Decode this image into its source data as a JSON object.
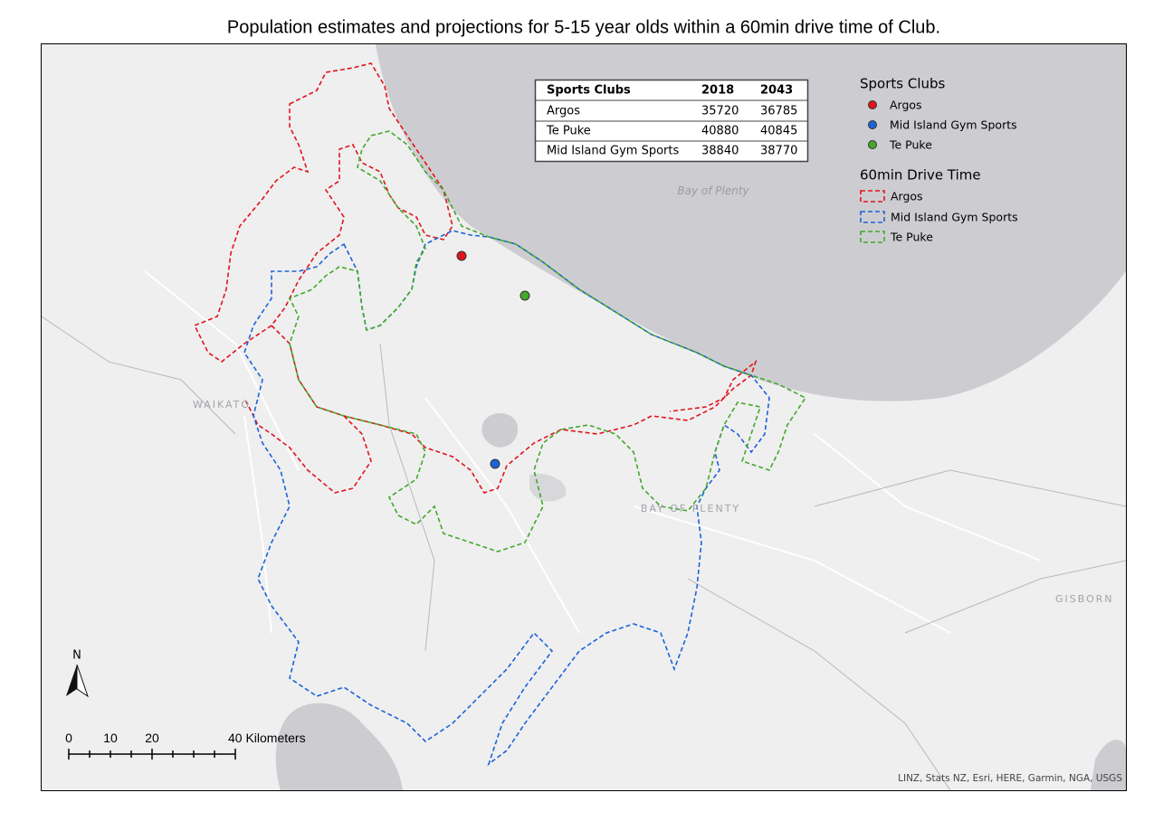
{
  "title": "Population estimates and projections for 5-15 year olds within a 60min drive time of Club.",
  "table": {
    "header": [
      "Sports Clubs",
      "2018",
      "2043"
    ],
    "rows": [
      [
        "Argos",
        35720,
        36785
      ],
      [
        "Te Puke",
        40880,
        40845
      ],
      [
        "Mid Island Gym Sports",
        38840,
        38770
      ]
    ]
  },
  "legend": {
    "clubs_title": "Sports Clubs",
    "clubs": [
      "Argos",
      "Mid Island Gym Sports",
      "Te Puke"
    ],
    "drive_title": "60min Drive Time",
    "drive": [
      "Argos",
      "Mid Island Gym Sports",
      "Te Puke"
    ]
  },
  "map_labels": [
    "Bay of Plenty",
    "WAIKATO",
    "BAY OF PLENTY",
    "GISBORN"
  ],
  "north": "N",
  "scale_bar": [
    "0",
    "10",
    "20",
    "40 Kilometers"
  ],
  "attribution": "LINZ, Stats NZ, Esri, HERE, Garmin, NGA, USGS"
}
